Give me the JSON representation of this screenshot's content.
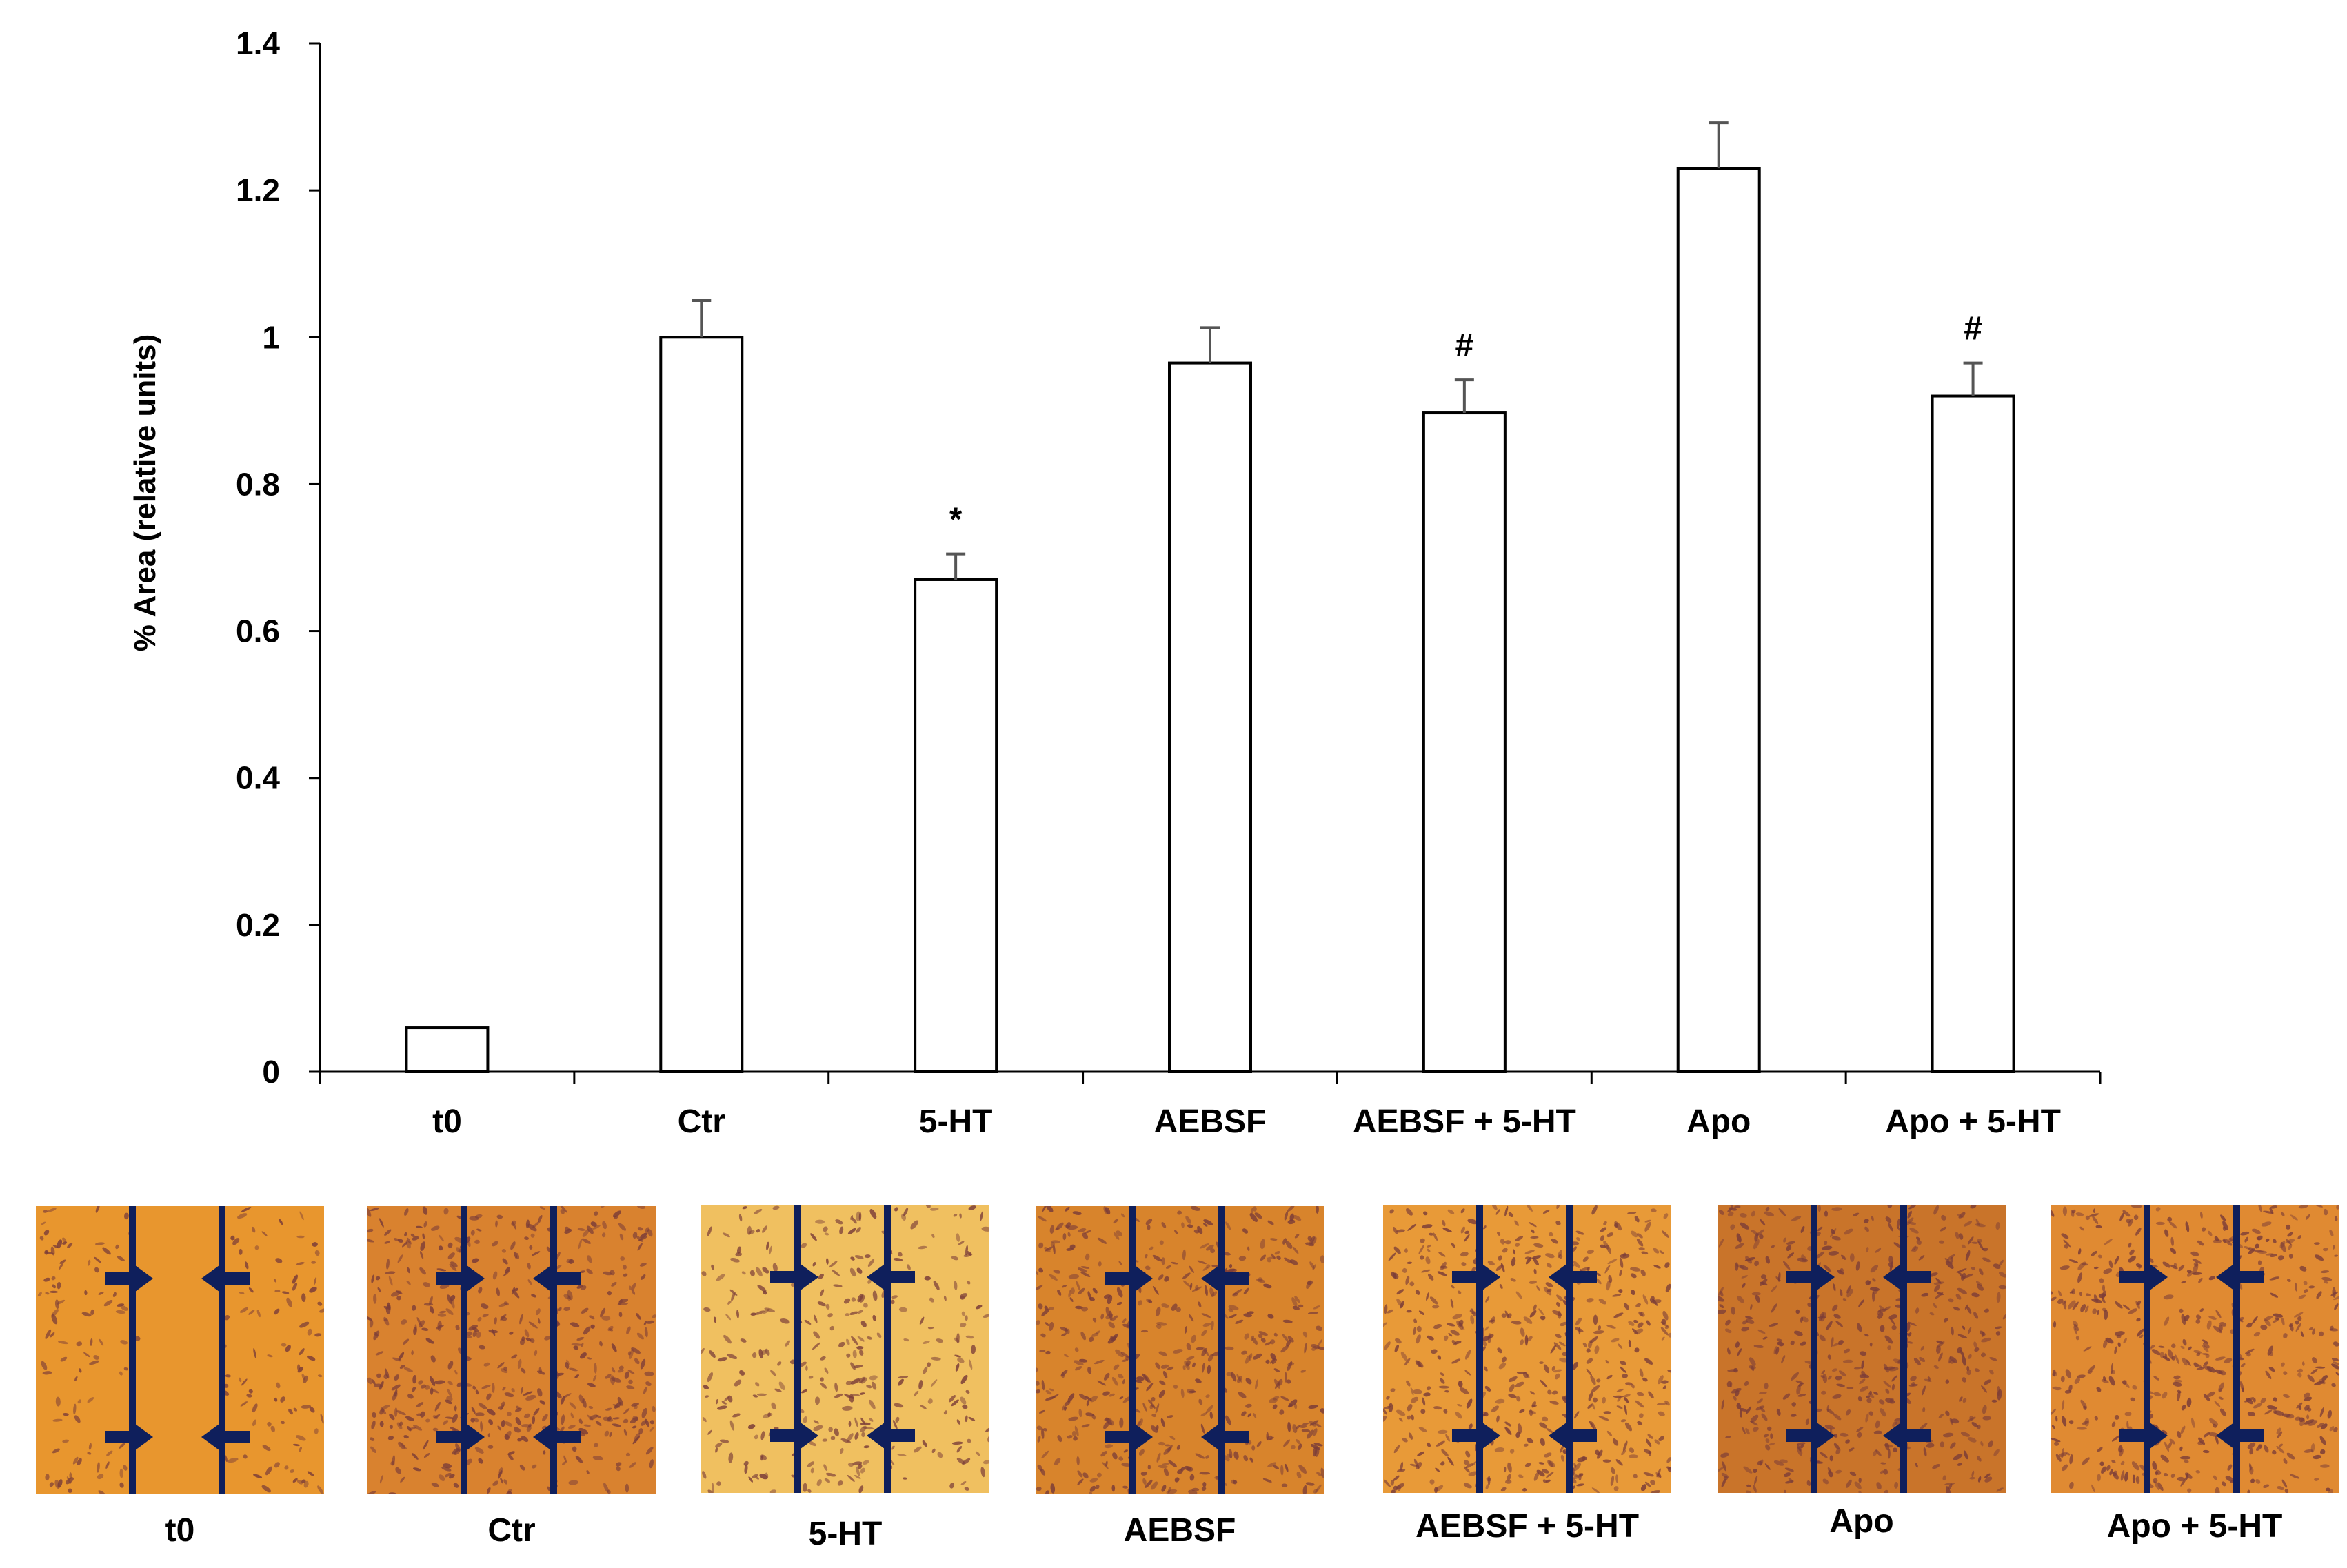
{
  "chart_data": {
    "type": "bar",
    "title": "",
    "xlabel": "",
    "ylabel": "% Area (relative units)",
    "ylim": [
      0,
      1.4
    ],
    "yticks": [
      "0",
      "0.2",
      "0.4",
      "0.6",
      "0.8",
      "1",
      "1.2",
      "1.4"
    ],
    "categories": [
      "t0",
      "Ctr",
      "5-HT",
      "AEBSF",
      "AEBSF + 5-HT",
      "Apo",
      "Apo + 5-HT"
    ],
    "values": [
      0.06,
      1.0,
      0.67,
      0.965,
      0.897,
      1.23,
      0.92
    ],
    "errors": [
      0.002,
      0.05,
      0.035,
      0.048,
      0.045,
      0.062,
      0.045
    ],
    "annotations": [
      "",
      "",
      "*",
      "",
      "#",
      "",
      "#"
    ],
    "bar_fill": "#ffffff",
    "bar_stroke": "#000000"
  },
  "micrographs": {
    "labels": [
      "t0",
      "Ctr",
      "5-HT",
      "AEBSF",
      "AEBSF + 5-HT",
      "Apo",
      "Apo + 5-HT"
    ],
    "base_colors": [
      "#e8962e",
      "#d9822f",
      "#f0c060",
      "#d8842c",
      "#e89a38",
      "#c9742a",
      "#e08a32"
    ],
    "cell_color": "#7a3c38",
    "line_color": "#0f1f5c"
  }
}
